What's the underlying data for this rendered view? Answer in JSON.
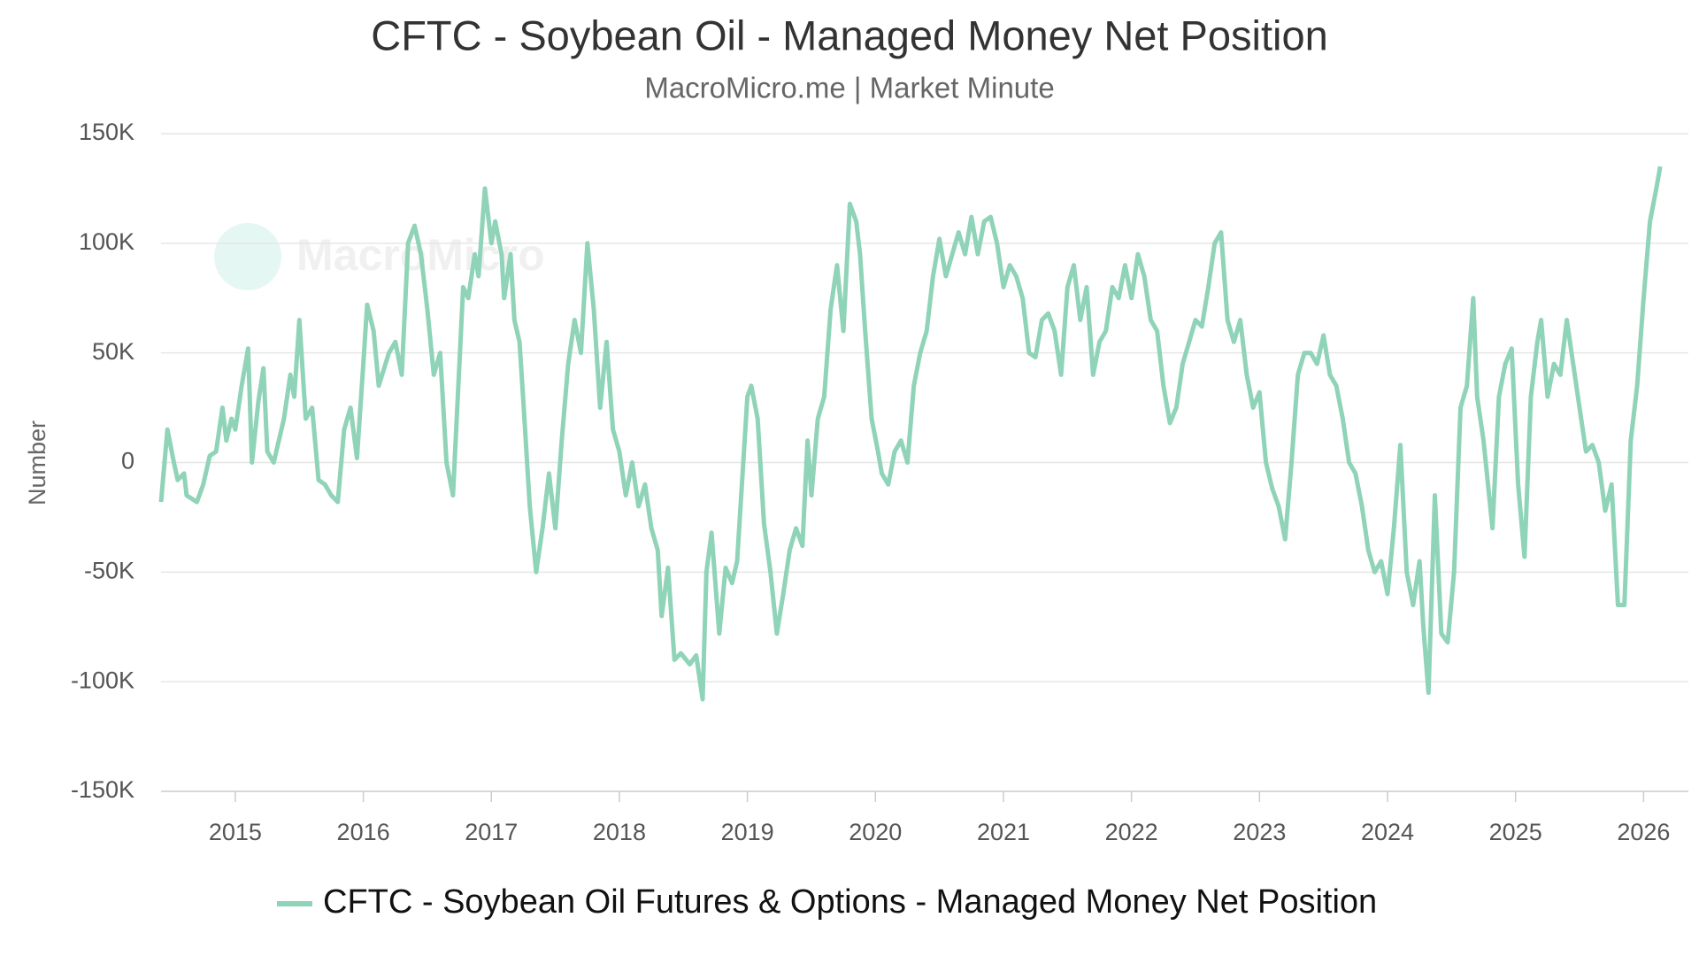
{
  "chart_data": {
    "type": "line",
    "title": "CFTC - Soybean Oil - Managed Money Net Position",
    "subtitle": "MacroMicro.me | Market Minute",
    "watermark": "MacroMicro",
    "y_label": "Number",
    "xlim": [
      2014.42,
      2026.35
    ],
    "xticks": [
      2015,
      2016,
      2017,
      2018,
      2019,
      2020,
      2021,
      2022,
      2023,
      2024,
      2025,
      2026
    ],
    "ylim": [
      -150000,
      150000
    ],
    "yticks": [
      {
        "value": -150000,
        "label": "-150K"
      },
      {
        "value": -100000,
        "label": "-100K"
      },
      {
        "value": -50000,
        "label": "-50K"
      },
      {
        "value": 0,
        "label": "0"
      },
      {
        "value": 50000,
        "label": "50K"
      },
      {
        "value": 100000,
        "label": "100K"
      },
      {
        "value": 150000,
        "label": "150K"
      }
    ],
    "grid": true,
    "x": [
      2014.42,
      2014.47,
      2014.52,
      2014.55,
      2014.6,
      2014.62,
      2014.7,
      2014.75,
      2014.8,
      2014.85,
      2014.9,
      2014.93,
      2014.97,
      2015.0,
      2015.05,
      2015.1,
      2015.13,
      2015.18,
      2015.22,
      2015.25,
      2015.3,
      2015.38,
      2015.43,
      2015.46,
      2015.5,
      2015.55,
      2015.6,
      2015.65,
      2015.7,
      2015.75,
      2015.8,
      2015.85,
      2015.9,
      2015.95,
      2016.0,
      2016.03,
      2016.08,
      2016.12,
      2016.2,
      2016.25,
      2016.3,
      2016.35,
      2016.4,
      2016.45,
      2016.5,
      2016.55,
      2016.6,
      2016.65,
      2016.7,
      2016.78,
      2016.82,
      2016.87,
      2016.9,
      2016.95,
      2017.0,
      2017.03,
      2017.08,
      2017.1,
      2017.15,
      2017.18,
      2017.22,
      2017.25,
      2017.3,
      2017.35,
      2017.4,
      2017.45,
      2017.5,
      2017.55,
      2017.6,
      2017.65,
      2017.7,
      2017.75,
      2017.8,
      2017.85,
      2017.9,
      2017.95,
      2018.0,
      2018.05,
      2018.1,
      2018.15,
      2018.2,
      2018.25,
      2018.3,
      2018.33,
      2018.38,
      2018.43,
      2018.48,
      2018.55,
      2018.6,
      2018.65,
      2018.68,
      2018.72,
      2018.78,
      2018.83,
      2018.88,
      2018.92,
      2019.0,
      2019.03,
      2019.08,
      2019.13,
      2019.18,
      2019.23,
      2019.28,
      2019.33,
      2019.38,
      2019.43,
      2019.47,
      2019.5,
      2019.55,
      2019.6,
      2019.65,
      2019.7,
      2019.75,
      2019.8,
      2019.85,
      2019.88,
      2019.92,
      2019.97,
      2020.02,
      2020.05,
      2020.1,
      2020.15,
      2020.2,
      2020.25,
      2020.3,
      2020.35,
      2020.4,
      2020.45,
      2020.5,
      2020.55,
      2020.6,
      2020.65,
      2020.7,
      2020.75,
      2020.8,
      2020.85,
      2020.9,
      2020.95,
      2021.0,
      2021.05,
      2021.1,
      2021.15,
      2021.2,
      2021.25,
      2021.3,
      2021.35,
      2021.4,
      2021.45,
      2021.5,
      2021.55,
      2021.6,
      2021.65,
      2021.7,
      2021.75,
      2021.8,
      2021.85,
      2021.9,
      2021.95,
      2022.0,
      2022.05,
      2022.1,
      2022.15,
      2022.2,
      2022.25,
      2022.3,
      2022.35,
      2022.4,
      2022.45,
      2022.5,
      2022.55,
      2022.6,
      2022.65,
      2022.7,
      2022.75,
      2022.8,
      2022.85,
      2022.9,
      2022.95,
      2023.0,
      2023.05,
      2023.1,
      2023.15,
      2023.2,
      2023.25,
      2023.3,
      2023.35,
      2023.4,
      2023.45,
      2023.5,
      2023.55,
      2023.6,
      2023.65,
      2023.7,
      2023.75,
      2023.8,
      2023.85,
      2023.9,
      2023.95,
      2024.0,
      2024.05,
      2024.1,
      2024.15,
      2024.2,
      2024.25,
      2024.28,
      2024.32,
      2024.37,
      2024.42,
      2024.47,
      2024.52,
      2024.57,
      2024.62,
      2024.67,
      2024.7,
      2024.75,
      2024.82,
      2024.87,
      2024.92,
      2024.97,
      2025.02,
      2025.07,
      2025.12,
      2025.17,
      2025.2,
      2025.25,
      2025.3,
      2025.35,
      2025.4,
      2025.45,
      2025.5,
      2025.55,
      2025.6,
      2025.65,
      2025.7,
      2025.75,
      2025.8,
      2025.85,
      2025.9,
      2025.95,
      2026.0,
      2026.05,
      2026.1,
      2026.13
    ],
    "series": [
      {
        "name": "CFTC - Soybean Oil Futures & Options - Managed Money Net Position",
        "color": "#8fd3b8",
        "values": [
          -18000,
          15000,
          0,
          -8000,
          -5000,
          -15000,
          -18000,
          -10000,
          3000,
          5000,
          25000,
          10000,
          20000,
          15000,
          35000,
          52000,
          0,
          28000,
          43000,
          5000,
          0,
          20000,
          40000,
          30000,
          65000,
          20000,
          25000,
          -8000,
          -10000,
          -15000,
          -18000,
          15000,
          25000,
          2000,
          45000,
          72000,
          60000,
          35000,
          50000,
          55000,
          40000,
          100000,
          108000,
          95000,
          70000,
          40000,
          50000,
          0,
          -15000,
          80000,
          75000,
          95000,
          85000,
          125000,
          100000,
          110000,
          95000,
          75000,
          95000,
          65000,
          55000,
          28000,
          -20000,
          -50000,
          -30000,
          -5000,
          -30000,
          10000,
          45000,
          65000,
          50000,
          100000,
          70000,
          25000,
          55000,
          15000,
          5000,
          -15000,
          0,
          -20000,
          -10000,
          -30000,
          -40000,
          -70000,
          -48000,
          -90000,
          -87000,
          -92000,
          -88000,
          -108000,
          -50000,
          -32000,
          -78000,
          -48000,
          -55000,
          -45000,
          30000,
          35000,
          20000,
          -28000,
          -50000,
          -78000,
          -60000,
          -40000,
          -30000,
          -38000,
          10000,
          -15000,
          20000,
          30000,
          70000,
          90000,
          60000,
          118000,
          110000,
          95000,
          60000,
          20000,
          5000,
          -5000,
          -10000,
          5000,
          10000,
          0,
          35000,
          50000,
          60000,
          85000,
          102000,
          85000,
          95000,
          105000,
          95000,
          112000,
          95000,
          110000,
          112000,
          100000,
          80000,
          90000,
          85000,
          75000,
          50000,
          48000,
          65000,
          68000,
          60000,
          40000,
          80000,
          90000,
          65000,
          80000,
          40000,
          55000,
          60000,
          80000,
          75000,
          90000,
          75000,
          95000,
          85000,
          65000,
          60000,
          35000,
          18000,
          25000,
          45000,
          55000,
          65000,
          62000,
          80000,
          100000,
          105000,
          65000,
          55000,
          65000,
          40000,
          25000,
          32000,
          0,
          -12000,
          -20000,
          -35000,
          0,
          40000,
          50000,
          50000,
          45000,
          58000,
          40000,
          35000,
          20000,
          0,
          -5000,
          -20000,
          -40000,
          -50000,
          -45000,
          -60000,
          -30000,
          8000,
          -50000,
          -65000,
          -45000,
          -75000,
          -105000,
          -15000,
          -78000,
          -82000,
          -50000,
          25000,
          35000,
          75000,
          30000,
          10000,
          -30000,
          30000,
          45000,
          52000,
          -10000,
          -43000,
          30000,
          55000,
          65000,
          30000,
          45000,
          40000,
          65000,
          45000,
          25000,
          5000,
          8000,
          0,
          -22000,
          -10000,
          -65000,
          -65000,
          10000,
          35000,
          75000,
          110000,
          125000,
          135000
        ]
      }
    ]
  }
}
